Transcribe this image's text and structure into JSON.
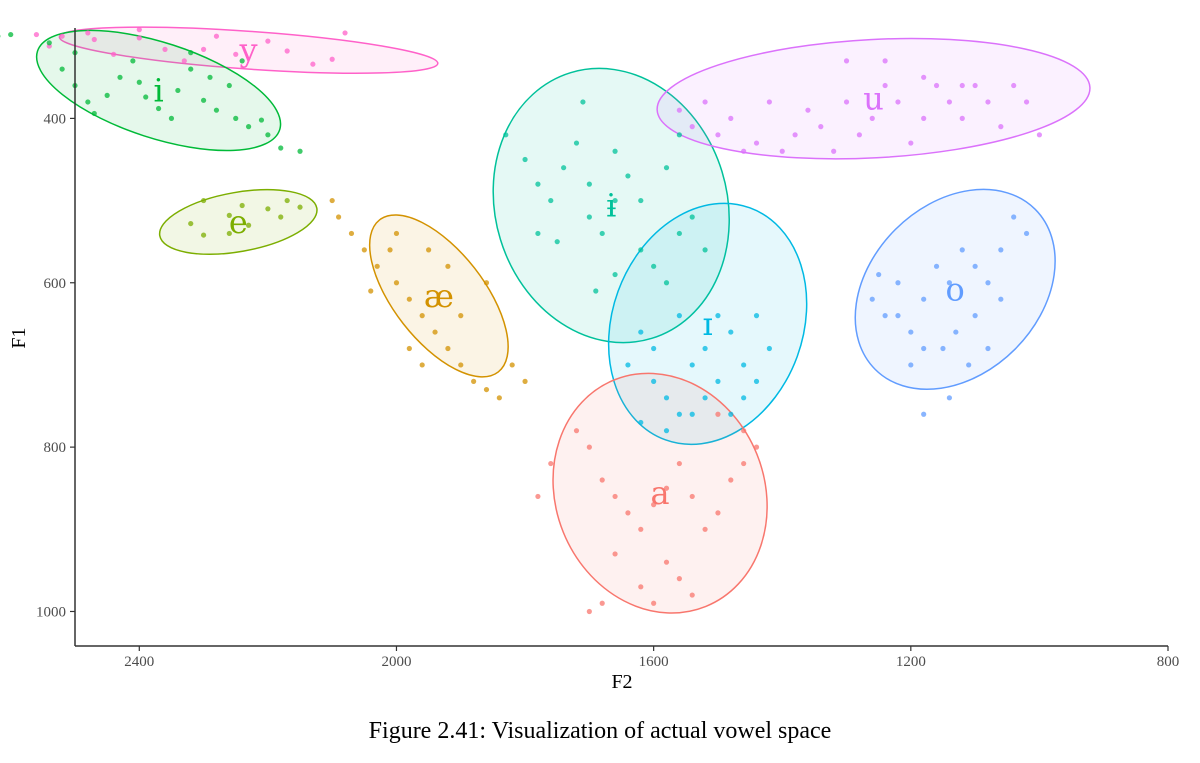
{
  "caption": "Figure 2.41: Visualization of actual vowel space",
  "chart_data": {
    "type": "scatter",
    "title": "",
    "xlabel": "F2",
    "ylabel": "F1",
    "x_reversed": true,
    "y_reversed": true,
    "xlim": [
      2500,
      800
    ],
    "ylim": [
      1042,
      290
    ],
    "xticks": [
      2400,
      2000,
      1600,
      1200,
      800
    ],
    "yticks": [
      400,
      600,
      800,
      1000
    ],
    "grid": false,
    "legend": "none",
    "series": [
      {
        "name": "y",
        "color": "#FF61C9",
        "ellipse": {
          "cx": 2230,
          "cy": 317,
          "rx": 295,
          "ry": 23,
          "angle": 4
        },
        "points": [
          [
            2540,
            312
          ],
          [
            2520,
            300
          ],
          [
            2470,
            304
          ],
          [
            2440,
            322
          ],
          [
            2400,
            302
          ],
          [
            2360,
            316
          ],
          [
            2330,
            330
          ],
          [
            2300,
            316
          ],
          [
            2280,
            300
          ],
          [
            2250,
            322
          ],
          [
            2200,
            306
          ],
          [
            2170,
            318
          ],
          [
            2130,
            334
          ],
          [
            2100,
            328
          ],
          [
            2080,
            296
          ],
          [
            2400,
            292
          ],
          [
            2480,
            296
          ],
          [
            2560,
            298
          ]
        ]
      },
      {
        "name": "i",
        "color": "#00BA38",
        "ellipse": {
          "cx": 2370,
          "cy": 366,
          "rx": 198,
          "ry": 58,
          "angle": 18
        },
        "points": [
          [
            2540,
            308
          ],
          [
            2520,
            340
          ],
          [
            2500,
            360
          ],
          [
            2480,
            380
          ],
          [
            2470,
            394
          ],
          [
            2450,
            372
          ],
          [
            2430,
            350
          ],
          [
            2410,
            330
          ],
          [
            2400,
            356
          ],
          [
            2390,
            374
          ],
          [
            2370,
            388
          ],
          [
            2350,
            400
          ],
          [
            2340,
            366
          ],
          [
            2320,
            340
          ],
          [
            2300,
            378
          ],
          [
            2280,
            390
          ],
          [
            2260,
            360
          ],
          [
            2250,
            400
          ],
          [
            2240,
            330
          ],
          [
            2230,
            410
          ],
          [
            2290,
            350
          ],
          [
            2320,
            320
          ],
          [
            2210,
            402
          ],
          [
            2200,
            420
          ],
          [
            2180,
            436
          ],
          [
            2150,
            440
          ],
          [
            2600,
            298
          ],
          [
            2620,
            300
          ],
          [
            2500,
            320
          ]
        ]
      },
      {
        "name": "e",
        "color": "#7CAE00",
        "ellipse": {
          "cx": 2246,
          "cy": 526,
          "rx": 124,
          "ry": 36,
          "angle": -10
        },
        "points": [
          [
            2320,
            528
          ],
          [
            2300,
            542
          ],
          [
            2260,
            518
          ],
          [
            2240,
            506
          ],
          [
            2200,
            510
          ],
          [
            2180,
            520
          ],
          [
            2170,
            500
          ],
          [
            2150,
            508
          ],
          [
            2260,
            540
          ],
          [
            2300,
            500
          ],
          [
            2230,
            530
          ]
        ]
      },
      {
        "name": "æ",
        "color": "#D39200",
        "ellipse": {
          "cx": 1934,
          "cy": 616,
          "rx": 150,
          "ry": 55,
          "angle": 52
        },
        "points": [
          [
            2090,
            520
          ],
          [
            2070,
            540
          ],
          [
            2050,
            560
          ],
          [
            2030,
            580
          ],
          [
            2010,
            560
          ],
          [
            2000,
            600
          ],
          [
            1980,
            620
          ],
          [
            1960,
            640
          ],
          [
            1940,
            660
          ],
          [
            1920,
            680
          ],
          [
            1900,
            700
          ],
          [
            1880,
            720
          ],
          [
            1860,
            730
          ],
          [
            1840,
            740
          ],
          [
            1820,
            700
          ],
          [
            1800,
            720
          ],
          [
            1980,
            680
          ],
          [
            1960,
            700
          ],
          [
            1900,
            640
          ],
          [
            1950,
            560
          ],
          [
            2040,
            610
          ],
          [
            2100,
            500
          ],
          [
            2000,
            540
          ],
          [
            1920,
            580
          ],
          [
            1860,
            600
          ]
        ]
      },
      {
        "name": "ɨ",
        "color": "#00C19A",
        "ellipse": {
          "cx": 1666,
          "cy": 506,
          "rx": 216,
          "ry": 141,
          "angle": 73
        },
        "points": [
          [
            1830,
            420
          ],
          [
            1800,
            450
          ],
          [
            1780,
            480
          ],
          [
            1760,
            500
          ],
          [
            1740,
            460
          ],
          [
            1720,
            430
          ],
          [
            1700,
            520
          ],
          [
            1680,
            540
          ],
          [
            1660,
            500
          ],
          [
            1640,
            470
          ],
          [
            1620,
            560
          ],
          [
            1600,
            580
          ],
          [
            1580,
            600
          ],
          [
            1560,
            540
          ],
          [
            1540,
            520
          ],
          [
            1520,
            560
          ],
          [
            1700,
            480
          ],
          [
            1660,
            440
          ],
          [
            1620,
            500
          ],
          [
            1750,
            550
          ],
          [
            1690,
            610
          ],
          [
            1710,
            380
          ],
          [
            1580,
            460
          ],
          [
            1560,
            420
          ],
          [
            1660,
            590
          ],
          [
            1780,
            540
          ]
        ]
      },
      {
        "name": "ɪ",
        "color": "#00B9E3",
        "ellipse": {
          "cx": 1516,
          "cy": 650,
          "rx": 192,
          "ry": 116,
          "angle": -70
        },
        "points": [
          [
            1640,
            700
          ],
          [
            1620,
            660
          ],
          [
            1600,
            720
          ],
          [
            1580,
            740
          ],
          [
            1560,
            760
          ],
          [
            1540,
            700
          ],
          [
            1520,
            680
          ],
          [
            1500,
            720
          ],
          [
            1480,
            660
          ],
          [
            1460,
            700
          ],
          [
            1440,
            640
          ],
          [
            1420,
            680
          ],
          [
            1600,
            680
          ],
          [
            1560,
            640
          ],
          [
            1520,
            740
          ],
          [
            1480,
            760
          ],
          [
            1460,
            740
          ],
          [
            1540,
            760
          ],
          [
            1580,
            780
          ],
          [
            1620,
            770
          ],
          [
            1500,
            640
          ],
          [
            1440,
            720
          ]
        ]
      },
      {
        "name": "u",
        "color": "#DB72FB",
        "ellipse": {
          "cx": 1258,
          "cy": 376,
          "rx": 337,
          "ry": 72,
          "angle": -3
        },
        "points": [
          [
            1560,
            390
          ],
          [
            1540,
            410
          ],
          [
            1520,
            380
          ],
          [
            1500,
            420
          ],
          [
            1480,
            400
          ],
          [
            1460,
            440
          ],
          [
            1440,
            430
          ],
          [
            1420,
            380
          ],
          [
            1400,
            440
          ],
          [
            1380,
            420
          ],
          [
            1360,
            390
          ],
          [
            1340,
            410
          ],
          [
            1320,
            440
          ],
          [
            1300,
            380
          ],
          [
            1280,
            420
          ],
          [
            1260,
            400
          ],
          [
            1240,
            360
          ],
          [
            1220,
            380
          ],
          [
            1200,
            430
          ],
          [
            1180,
            400
          ],
          [
            1160,
            360
          ],
          [
            1140,
            380
          ],
          [
            1120,
            400
          ],
          [
            1100,
            360
          ],
          [
            1080,
            380
          ],
          [
            1060,
            410
          ],
          [
            1040,
            360
          ],
          [
            1020,
            380
          ],
          [
            1000,
            420
          ],
          [
            1300,
            330
          ],
          [
            1240,
            330
          ],
          [
            1180,
            350
          ],
          [
            1120,
            360
          ]
        ]
      },
      {
        "name": "o",
        "color": "#619CFF",
        "ellipse": {
          "cx": 1131,
          "cy": 608,
          "rx": 176,
          "ry": 103,
          "angle": -45
        },
        "points": [
          [
            1260,
            620
          ],
          [
            1240,
            640
          ],
          [
            1220,
            600
          ],
          [
            1200,
            660
          ],
          [
            1180,
            620
          ],
          [
            1160,
            580
          ],
          [
            1140,
            600
          ],
          [
            1120,
            560
          ],
          [
            1100,
            640
          ],
          [
            1080,
            600
          ],
          [
            1060,
            560
          ],
          [
            1040,
            520
          ],
          [
            1020,
            540
          ],
          [
            1200,
            700
          ],
          [
            1180,
            680
          ],
          [
            1150,
            680
          ],
          [
            1130,
            660
          ],
          [
            1110,
            700
          ],
          [
            1080,
            680
          ],
          [
            1060,
            620
          ],
          [
            1100,
            580
          ],
          [
            1220,
            640
          ],
          [
            1250,
            590
          ],
          [
            1140,
            740
          ],
          [
            1180,
            760
          ]
        ]
      },
      {
        "name": "a",
        "color": "#F8766D",
        "ellipse": {
          "cx": 1590,
          "cy": 856,
          "rx": 190,
          "ry": 127,
          "angle": 68
        },
        "points": [
          [
            1720,
            780
          ],
          [
            1700,
            800
          ],
          [
            1680,
            840
          ],
          [
            1660,
            860
          ],
          [
            1640,
            880
          ],
          [
            1620,
            900
          ],
          [
            1600,
            870
          ],
          [
            1580,
            850
          ],
          [
            1560,
            820
          ],
          [
            1540,
            860
          ],
          [
            1520,
            900
          ],
          [
            1500,
            880
          ],
          [
            1480,
            840
          ],
          [
            1460,
            820
          ],
          [
            1440,
            800
          ],
          [
            1580,
            940
          ],
          [
            1560,
            960
          ],
          [
            1540,
            980
          ],
          [
            1600,
            990
          ],
          [
            1620,
            970
          ],
          [
            1660,
            930
          ],
          [
            1680,
            990
          ],
          [
            1700,
            1000
          ],
          [
            1760,
            820
          ],
          [
            1780,
            860
          ],
          [
            1500,
            760
          ],
          [
            1460,
            780
          ]
        ]
      }
    ]
  }
}
